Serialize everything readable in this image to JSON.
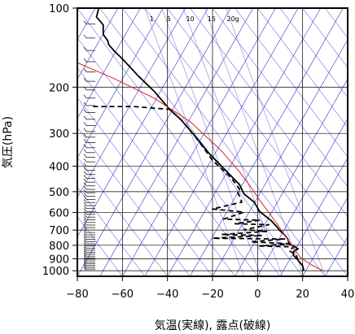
{
  "chart_data": {
    "type": "line",
    "xlabel": "気温(実線), 露点(破線)",
    "ylabel": "気圧(hPa)",
    "xlim": [
      -80,
      40
    ],
    "ylim": [
      1050,
      100
    ],
    "y_scale": "log",
    "x_ticks": [
      "−80",
      "−60",
      "−40",
      "−20",
      "0",
      "20",
      "40"
    ],
    "x_tick_values": [
      -80,
      -60,
      -40,
      -20,
      0,
      20,
      40
    ],
    "y_ticks": [
      "100",
      "200",
      "300",
      "400",
      "500",
      "600",
      "700",
      "800",
      "900",
      "1000"
    ],
    "y_tick_values": [
      100,
      200,
      300,
      400,
      500,
      600,
      700,
      800,
      900,
      1000
    ],
    "mixing_ratio_labels": [
      "1",
      "5",
      "10",
      "15",
      "20g"
    ],
    "mixing_ratio_values": [
      1,
      5,
      10,
      15,
      20
    ],
    "series": [
      {
        "role": "temperature",
        "style": "solid",
        "color": "#000000",
        "points": [
          [
            -70.5,
            100
          ],
          [
            -71.5,
            108
          ],
          [
            -69.5,
            113
          ],
          [
            -68.5,
            116
          ],
          [
            -68.5,
            126
          ],
          [
            -66.5,
            133
          ],
          [
            -66,
            138
          ],
          [
            -63.5,
            146
          ],
          [
            -60,
            156
          ],
          [
            -53,
            181
          ],
          [
            -46,
            207
          ],
          [
            -39,
            243
          ],
          [
            -34,
            266
          ],
          [
            -28.5,
            302
          ],
          [
            -22,
            354
          ],
          [
            -14,
            416
          ],
          [
            -8,
            470
          ],
          [
            -6,
            510
          ],
          [
            -1.5,
            548
          ],
          [
            1,
            596
          ],
          [
            6,
            644
          ],
          [
            8.5,
            680
          ],
          [
            10,
            705
          ],
          [
            12,
            730
          ],
          [
            13.5,
            760
          ],
          [
            14,
            790
          ],
          [
            16.5,
            810
          ],
          [
            18,
            825
          ],
          [
            16,
            845
          ],
          [
            16,
            875
          ],
          [
            18,
            912
          ],
          [
            20,
            958
          ],
          [
            20.5,
            998
          ]
        ]
      },
      {
        "role": "dewpoint",
        "style": "dashed",
        "color": "#000000",
        "points": [
          [
            -73,
            237
          ],
          [
            -55,
            237
          ],
          [
            -39,
            243
          ],
          [
            -34,
            266
          ],
          [
            -28.5,
            302
          ],
          [
            -24,
            340
          ],
          [
            -20,
            380
          ],
          [
            -12,
            440
          ],
          [
            -9,
            475
          ],
          [
            -8,
            490
          ],
          [
            -9,
            500
          ],
          [
            -8,
            520
          ],
          [
            -7,
            548
          ],
          [
            -20,
            582
          ],
          [
            -6,
            598
          ],
          [
            -15,
            636
          ],
          [
            1,
            642
          ],
          [
            -10,
            662
          ],
          [
            5,
            668
          ],
          [
            -6,
            698
          ],
          [
            4,
            708
          ],
          [
            -16,
            728
          ],
          [
            2,
            734
          ],
          [
            -20,
            752
          ],
          [
            12,
            757
          ],
          [
            -3,
            776
          ],
          [
            14,
            789
          ],
          [
            1,
            805
          ],
          [
            16,
            811
          ],
          [
            14,
            840
          ],
          [
            17,
            866
          ],
          [
            18,
            912
          ],
          [
            20,
            958
          ],
          [
            20.5,
            998
          ]
        ]
      },
      {
        "role": "reference",
        "style": "solid",
        "color": "#e02020",
        "points": [
          [
            -81,
            160
          ],
          [
            -64,
            185
          ],
          [
            -46,
            220
          ],
          [
            -30,
            270
          ],
          [
            -16,
            350
          ],
          [
            -8,
            420
          ],
          [
            -3,
            480
          ],
          [
            1,
            540
          ],
          [
            5,
            600
          ],
          [
            9,
            670
          ],
          [
            13,
            750
          ],
          [
            16,
            820
          ],
          [
            19,
            890
          ],
          [
            24,
            950
          ],
          [
            29,
            1000
          ]
        ]
      }
    ]
  }
}
